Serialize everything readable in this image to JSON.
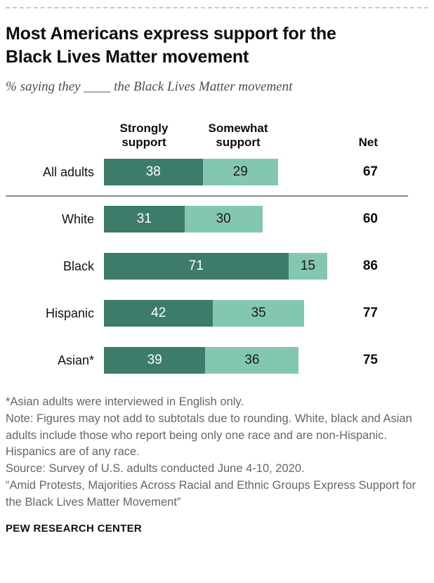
{
  "header": {
    "title": "Most Americans express support for the Black Lives Matter movement",
    "subtitle": "% saying they ____ the Black Lives Matter movement"
  },
  "chart_data": {
    "type": "bar",
    "orientation": "horizontal",
    "stacked": true,
    "categories": [
      "All adults",
      "White",
      "Black",
      "Hispanic",
      "Asian*"
    ],
    "series": [
      {
        "name": "Strongly support",
        "color": "#3d7c6b",
        "label_color": "#ffffff",
        "values": [
          38,
          31,
          71,
          42,
          39
        ]
      },
      {
        "name": "Somewhat support",
        "color": "#84c7b1",
        "label_color": "#1a1a1a",
        "values": [
          29,
          30,
          15,
          35,
          36
        ]
      }
    ],
    "net_label": "Net",
    "net_values": [
      67,
      60,
      86,
      77,
      75
    ],
    "xlim": [
      0,
      100
    ],
    "value_labels": true,
    "grid": false,
    "legend_position": "top",
    "group_divider_after": "All adults"
  },
  "footnotes": [
    "*Asian adults were interviewed in English only.",
    "Note: Figures may not add to subtotals due to rounding. White, black and Asian adults include those who report being only one race and are non-Hispanic. Hispanics are of any race.",
    "Source: Survey of U.S. adults conducted June 4-10, 2020.",
    "“Amid Protests, Majorities Across Racial and Ethnic Groups Express Support for the Black Lives Matter Movement”"
  ],
  "footer": {
    "brand": "PEW RESEARCH CENTER"
  }
}
